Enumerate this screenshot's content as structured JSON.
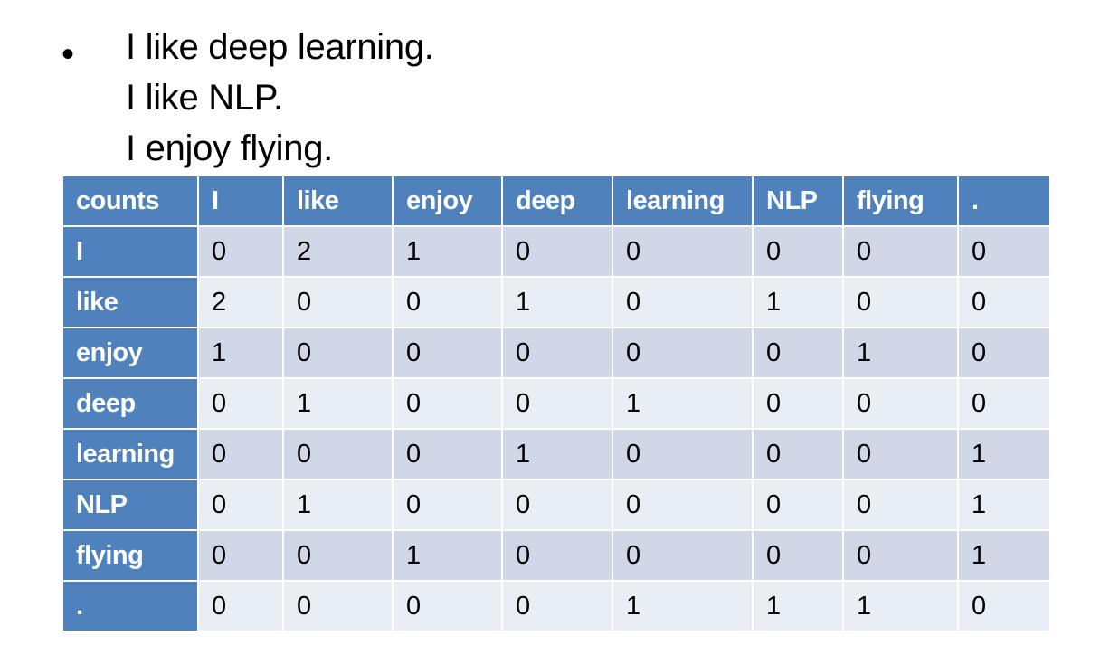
{
  "bullet": "•",
  "sentences": [
    "I like deep learning.",
    "I like NLP.",
    "I enjoy flying."
  ],
  "table": {
    "corner_label": "counts",
    "columns": [
      "I",
      "like",
      "enjoy",
      "deep",
      "learning",
      "NLP",
      "flying",
      "."
    ],
    "rows": [
      {
        "label": "I",
        "values": [
          "0",
          "2",
          "1",
          "0",
          "0",
          "0",
          "0",
          "0"
        ]
      },
      {
        "label": "like",
        "values": [
          "2",
          "0",
          "0",
          "1",
          "0",
          "1",
          "0",
          "0"
        ]
      },
      {
        "label": "enjoy",
        "values": [
          "1",
          "0",
          "0",
          "0",
          "0",
          "0",
          "1",
          "0"
        ]
      },
      {
        "label": "deep",
        "values": [
          "0",
          "1",
          "0",
          "0",
          "1",
          "0",
          "0",
          "0"
        ]
      },
      {
        "label": "learning",
        "values": [
          "0",
          "0",
          "0",
          "1",
          "0",
          "0",
          "0",
          "1"
        ]
      },
      {
        "label": "NLP",
        "values": [
          "0",
          "1",
          "0",
          "0",
          "0",
          "0",
          "0",
          "1"
        ]
      },
      {
        "label": "flying",
        "values": [
          "0",
          "0",
          "1",
          "0",
          "0",
          "0",
          "0",
          "1"
        ]
      },
      {
        "label": ".",
        "values": [
          "0",
          "0",
          "0",
          "0",
          "1",
          "1",
          "1",
          "0"
        ]
      }
    ]
  },
  "colors": {
    "header_blue": "#4f81bd",
    "row_band_dark": "#d0d8e8",
    "row_band_light": "#e9edf4"
  }
}
